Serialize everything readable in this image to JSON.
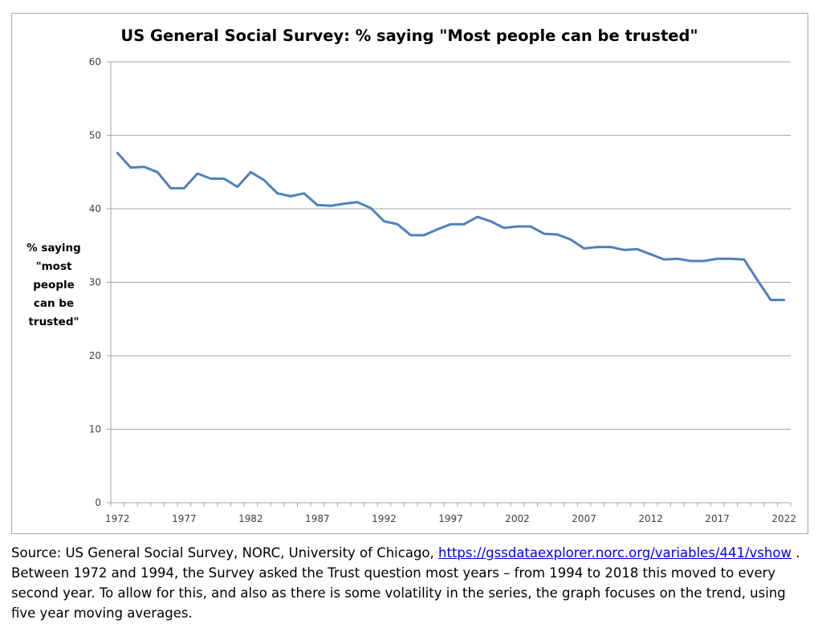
{
  "chart_data": {
    "type": "line",
    "title": "US General Social Survey: % saying \"Most people can be trusted\"",
    "xlabel": "",
    "ylabel_lines": [
      "% saying",
      "\"most",
      "people",
      "can be",
      "trusted\""
    ],
    "ylabel": "% saying \"most people can be trusted\"",
    "ylim": [
      0,
      60
    ],
    "yticks": [
      0,
      10,
      20,
      30,
      40,
      50,
      60
    ],
    "ytick_labels": [
      "0",
      "10",
      "20",
      "30",
      "40",
      "50",
      "60"
    ],
    "xtick_labels": [
      "1972",
      "1977",
      "1982",
      "1987",
      "1992",
      "1997",
      "2002",
      "2007",
      "2012",
      "2017",
      "2022"
    ],
    "grid": true,
    "legend": "none",
    "series_color": "#4f81bd",
    "x": [
      1972,
      1973,
      1974,
      1975,
      1976,
      1977,
      1978,
      1979,
      1980,
      1981,
      1982,
      1983,
      1984,
      1985,
      1986,
      1987,
      1988,
      1989,
      1990,
      1991,
      1992,
      1993,
      1994,
      1995,
      1996,
      1997,
      1998,
      1999,
      2000,
      2001,
      2002,
      2003,
      2004,
      2005,
      2006,
      2007,
      2008,
      2009,
      2010,
      2011,
      2012,
      2013,
      2014,
      2015,
      2016,
      2017,
      2018,
      2019,
      2020,
      2021,
      2022
    ],
    "series": [
      {
        "name": "% saying most people can be trusted (5-year moving average)",
        "values": [
          47.6,
          45.6,
          45.7,
          45.0,
          42.8,
          42.8,
          44.8,
          44.1,
          44.1,
          43.0,
          45.0,
          43.9,
          42.1,
          41.7,
          42.1,
          40.5,
          40.4,
          40.7,
          40.9,
          40.1,
          38.3,
          37.9,
          36.4,
          36.4,
          37.2,
          37.9,
          37.9,
          38.9,
          38.3,
          37.4,
          37.6,
          37.6,
          36.6,
          36.5,
          35.8,
          34.6,
          34.8,
          34.8,
          34.4,
          34.5,
          33.8,
          33.1,
          33.2,
          32.9,
          32.9,
          33.2,
          33.2,
          33.1,
          30.3,
          27.6,
          27.6
        ]
      }
    ]
  },
  "caption": {
    "prefix": "Source: US General Social Survey, NORC, University of Chicago, ",
    "link_text": "https://gssdataexplorer.norc.org/variables/441/vshow",
    "suffix": " . Between 1972 and 1994, the Survey asked the Trust question most years – from 1994 to 2018 this moved to every second year. To allow for this, and also as there is some volatility in the series, the graph focuses on the trend, using five year moving averages."
  }
}
